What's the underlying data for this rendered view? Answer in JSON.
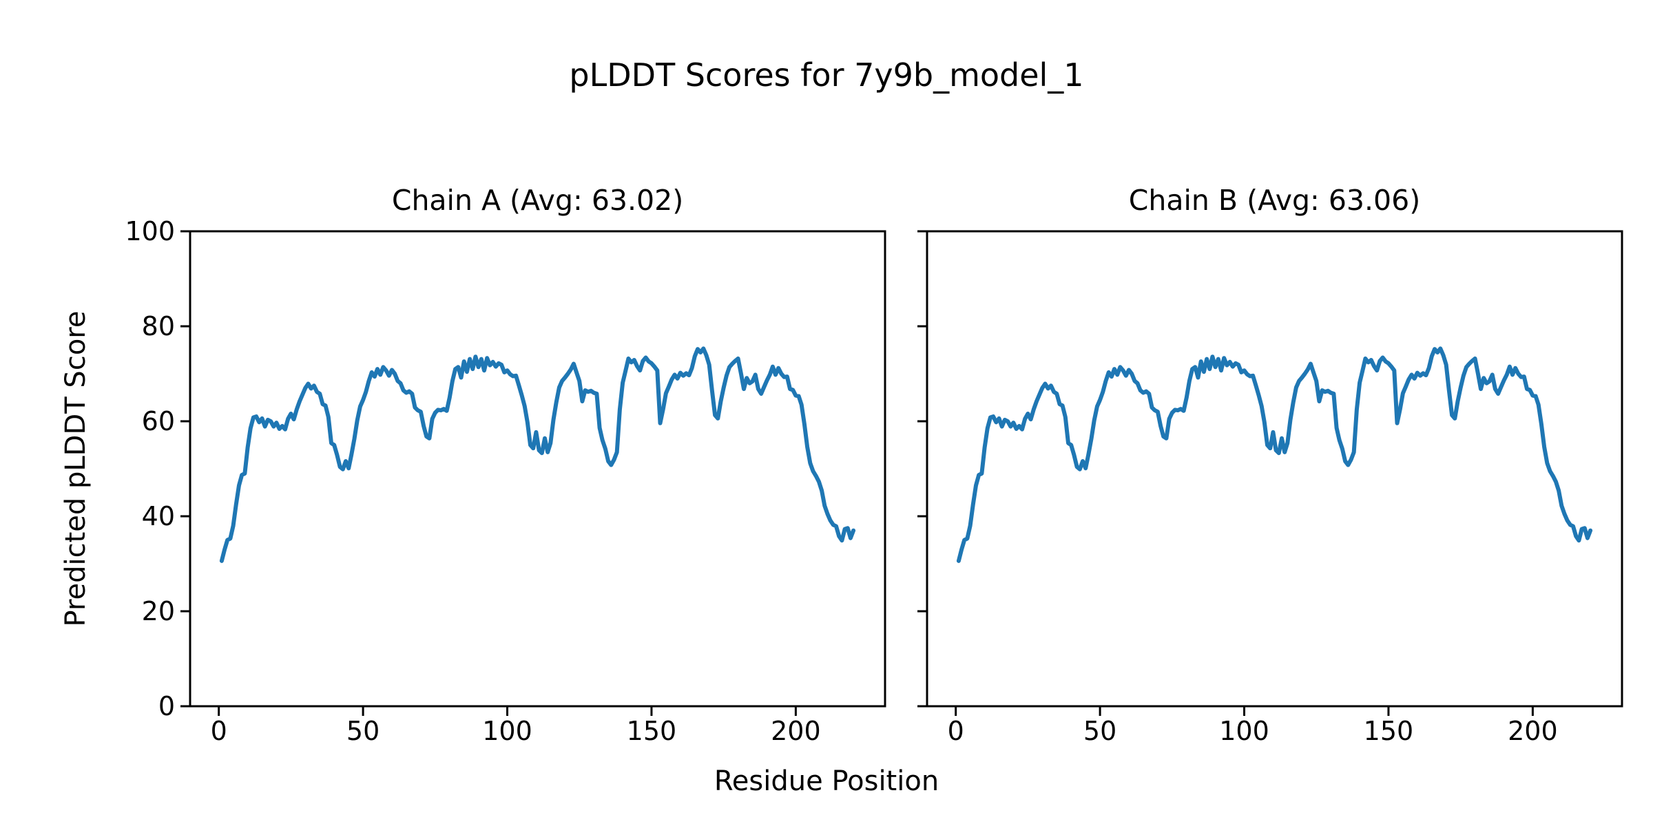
{
  "figure": {
    "suptitle": "pLDDT Scores for 7y9b_model_1",
    "xlabel": "Residue Position",
    "ylabel": "Predicted pLDDT Score",
    "background_color": "#ffffff",
    "text_color": "#000000"
  },
  "chart_data": {
    "type": "line",
    "title": "pLDDT Scores for 7y9b_model_1",
    "xlabel": "Residue Position",
    "ylabel": "Predicted pLDDT Score",
    "line_color": "#1f77b4",
    "axis_color": "#000000",
    "grid": false,
    "legend": false,
    "ylim": [
      0,
      100
    ],
    "y_ticks": [
      0,
      20,
      40,
      60,
      80,
      100
    ],
    "x_ticks": [
      0,
      50,
      100,
      150,
      200
    ],
    "x_start": 1,
    "n_points": 220,
    "subplots": [
      {
        "title": "Chain A (Avg: 63.02)",
        "chain": "A",
        "avg": 63.02,
        "values": [
          30.6,
          33.0,
          35.0,
          35.3,
          38.0,
          42.5,
          46.5,
          48.7,
          49.0,
          54.5,
          58.5,
          60.8,
          61.0,
          59.8,
          60.6,
          58.9,
          60.3,
          60.0,
          58.9,
          59.7,
          58.4,
          59.0,
          58.3,
          60.5,
          61.6,
          60.4,
          62.5,
          64.2,
          65.6,
          67.0,
          67.9,
          66.9,
          67.5,
          66.2,
          65.8,
          63.6,
          63.3,
          60.9,
          55.4,
          55.0,
          52.9,
          50.4,
          49.9,
          51.6,
          50.1,
          53.0,
          56.3,
          60.2,
          63.1,
          64.5,
          66.2,
          68.5,
          70.3,
          69.4,
          71.0,
          69.8,
          71.4,
          70.7,
          69.6,
          70.8,
          70.0,
          68.5,
          68.0,
          66.5,
          66.0,
          66.3,
          65.8,
          62.9,
          62.3,
          62.0,
          59.0,
          56.8,
          56.4,
          60.5,
          61.8,
          62.4,
          62.3,
          62.6,
          62.2,
          65.0,
          68.5,
          71.0,
          71.4,
          69.2,
          72.6,
          70.4,
          73.1,
          71.0,
          73.6,
          71.4,
          73.1,
          70.7,
          73.3,
          71.8,
          72.5,
          71.5,
          72.2,
          71.9,
          70.3,
          70.7,
          69.9,
          69.5,
          69.6,
          67.6,
          65.5,
          63.2,
          59.8,
          55.0,
          54.3,
          57.7,
          53.9,
          53.3,
          56.4,
          53.5,
          55.4,
          60.3,
          64.0,
          67.1,
          68.5,
          69.2,
          70.0,
          70.9,
          72.1,
          70.3,
          68.5,
          64.2,
          66.5,
          66.2,
          66.4,
          66.0,
          65.8,
          58.6,
          56.0,
          54.2,
          51.6,
          50.8,
          51.9,
          53.5,
          62.5,
          68.1,
          70.6,
          73.2,
          72.4,
          72.9,
          71.6,
          70.7,
          72.7,
          73.4,
          72.6,
          72.2,
          71.5,
          70.7,
          59.6,
          62.5,
          65.9,
          67.3,
          68.8,
          69.8,
          69.0,
          70.2,
          69.6,
          70.1,
          69.7,
          71.2,
          73.7,
          75.2,
          74.5,
          75.3,
          73.9,
          71.9,
          66.4,
          61.3,
          60.6,
          64.2,
          67.1,
          69.6,
          71.4,
          72.1,
          72.7,
          73.2,
          70.1,
          66.8,
          69.1,
          68.0,
          68.4,
          69.8,
          66.8,
          65.8,
          67.2,
          68.6,
          69.8,
          71.5,
          69.8,
          71.2,
          70.0,
          69.3,
          69.4,
          66.8,
          66.6,
          65.4,
          65.3,
          63.5,
          59.4,
          54.6,
          51.2,
          49.5,
          48.5,
          47.3,
          45.4,
          42.2,
          40.5,
          39.1,
          38.2,
          37.9,
          35.8,
          34.9,
          37.3,
          37.5,
          35.4,
          37.0
        ]
      },
      {
        "title": "Chain B (Avg: 63.06)",
        "chain": "B",
        "avg": 63.06,
        "values": [
          30.6,
          33.0,
          35.0,
          35.3,
          38.0,
          42.5,
          46.5,
          48.7,
          49.0,
          54.5,
          58.5,
          60.8,
          61.0,
          59.8,
          60.6,
          58.9,
          60.3,
          60.0,
          58.9,
          59.7,
          58.4,
          59.0,
          58.3,
          60.5,
          61.6,
          60.4,
          62.5,
          64.2,
          65.6,
          67.0,
          67.9,
          66.9,
          67.5,
          66.2,
          65.8,
          63.6,
          63.3,
          60.9,
          55.4,
          55.0,
          52.9,
          50.4,
          49.9,
          51.6,
          50.1,
          53.0,
          56.3,
          60.2,
          63.1,
          64.5,
          66.2,
          68.5,
          70.3,
          69.4,
          71.0,
          69.8,
          71.4,
          70.7,
          69.6,
          70.8,
          70.0,
          68.5,
          68.0,
          66.5,
          66.0,
          66.3,
          65.8,
          62.9,
          62.3,
          62.0,
          59.0,
          56.8,
          56.4,
          60.5,
          61.8,
          62.4,
          62.3,
          62.6,
          62.2,
          65.0,
          68.5,
          71.0,
          71.4,
          69.2,
          72.6,
          70.4,
          73.1,
          71.0,
          73.6,
          71.4,
          73.1,
          70.7,
          73.3,
          71.8,
          72.5,
          71.5,
          72.2,
          71.9,
          70.3,
          70.7,
          69.9,
          69.5,
          69.6,
          67.6,
          65.5,
          63.2,
          59.8,
          55.0,
          54.3,
          57.7,
          53.9,
          53.3,
          56.4,
          53.5,
          55.4,
          60.3,
          64.0,
          67.1,
          68.5,
          69.2,
          70.0,
          70.9,
          72.1,
          70.3,
          68.5,
          64.2,
          66.5,
          66.2,
          66.4,
          66.0,
          65.8,
          58.6,
          56.0,
          54.2,
          51.6,
          50.8,
          51.9,
          53.5,
          62.5,
          68.1,
          70.6,
          73.2,
          72.4,
          72.9,
          71.6,
          70.7,
          72.7,
          73.4,
          72.6,
          72.2,
          71.5,
          70.7,
          59.6,
          62.5,
          65.9,
          67.3,
          68.8,
          69.8,
          69.0,
          70.2,
          69.6,
          70.1,
          69.7,
          71.2,
          73.7,
          75.2,
          74.5,
          75.3,
          73.9,
          71.9,
          66.4,
          61.3,
          60.6,
          64.2,
          67.1,
          69.6,
          71.4,
          72.1,
          72.7,
          73.2,
          70.1,
          66.8,
          69.1,
          68.0,
          68.4,
          69.8,
          66.8,
          65.8,
          67.2,
          68.6,
          69.8,
          71.5,
          69.8,
          71.2,
          70.0,
          69.3,
          69.4,
          66.8,
          66.6,
          65.4,
          65.3,
          63.5,
          59.4,
          54.6,
          51.2,
          49.5,
          48.5,
          47.3,
          45.4,
          42.2,
          40.5,
          39.1,
          38.2,
          37.9,
          35.8,
          34.9,
          37.3,
          37.5,
          35.4,
          37.0
        ]
      }
    ]
  }
}
